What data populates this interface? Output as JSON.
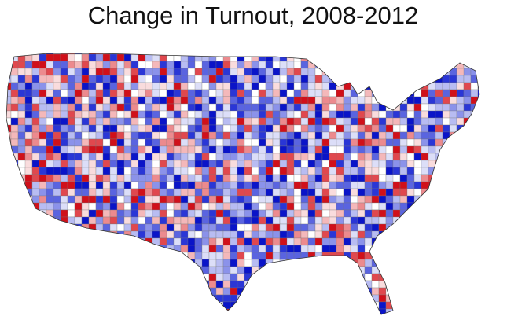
{
  "title": "Change in Turnout, 2008-2012"
}
